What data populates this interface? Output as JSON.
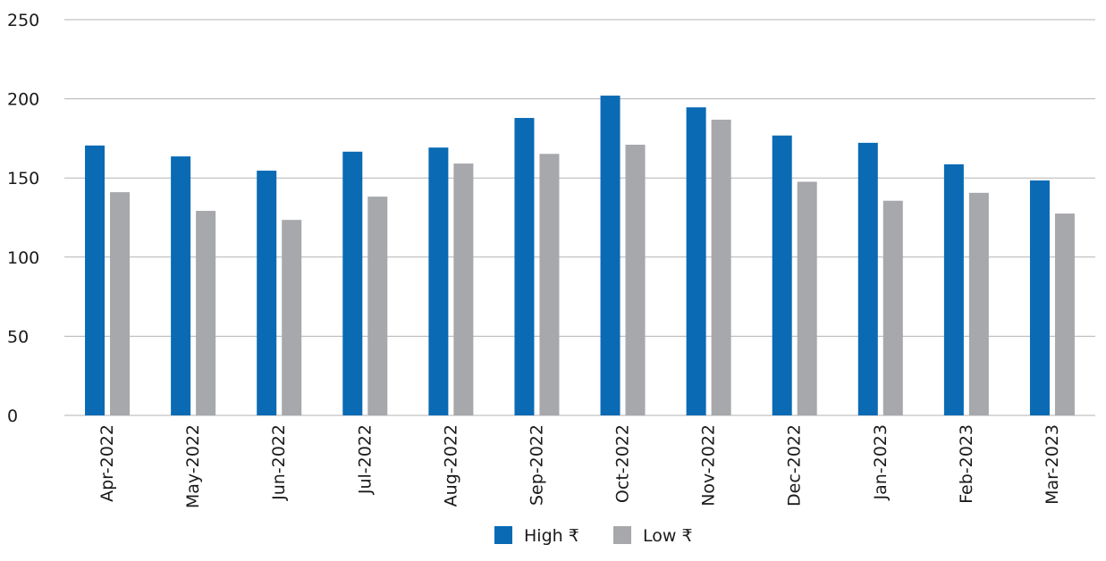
{
  "chart_data": {
    "type": "bar",
    "title": "",
    "xlabel": "",
    "ylabel": "",
    "ylim": [
      0,
      250
    ],
    "yticks": [
      0,
      50,
      100,
      150,
      200,
      250
    ],
    "grid": true,
    "legend_position": "bottom",
    "categories": [
      "Apr-2022",
      "May-2022",
      "Jun-2022",
      "Jul-2022",
      "Aug-2022",
      "Sep-2022",
      "Oct-2022",
      "Nov-2022",
      "Dec-2022",
      "Jan-2023",
      "Feb-2023",
      "Mar-2023"
    ],
    "series": [
      {
        "name": "High ₹",
        "color": "#0a6ab4",
        "values": [
          170.5,
          163.6,
          154.6,
          166.6,
          169.2,
          187.9,
          202.0,
          194.6,
          176.8,
          172.2,
          158.6,
          148.4
        ]
      },
      {
        "name": "Low ₹",
        "color": "#a6a8ab",
        "values": [
          141.0,
          129.2,
          123.5,
          138.2,
          159.1,
          165.2,
          171.0,
          186.8,
          147.6,
          135.6,
          140.6,
          127.5
        ]
      }
    ]
  }
}
